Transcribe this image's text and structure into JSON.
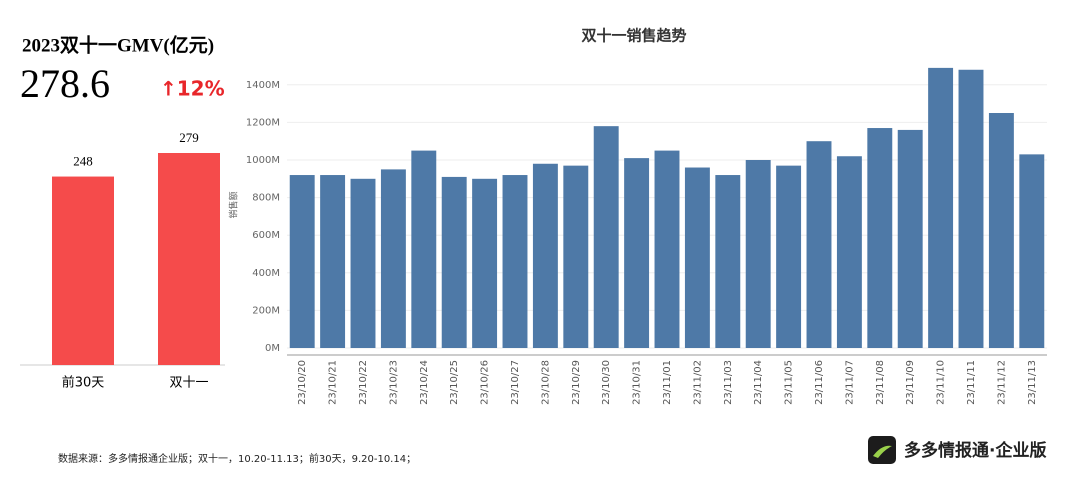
{
  "chart_data": [
    {
      "type": "bar",
      "title": "2023双十一GMV(亿元)",
      "headline": 278.6,
      "change": "↑12%",
      "categories": [
        "前30天",
        "双十一"
      ],
      "values": [
        248,
        279
      ],
      "color": "#f54b4b"
    },
    {
      "type": "bar",
      "title": "双十一销售趋势",
      "y_label": "销售额",
      "categories": [
        "23/10/20",
        "23/10/21",
        "23/10/22",
        "23/10/23",
        "23/10/24",
        "23/10/25",
        "23/10/26",
        "23/10/27",
        "23/10/28",
        "23/10/29",
        "23/10/30",
        "23/10/31",
        "23/11/01",
        "23/11/02",
        "23/11/03",
        "23/11/04",
        "23/11/05",
        "23/11/06",
        "23/11/07",
        "23/11/08",
        "23/11/09",
        "23/11/10",
        "23/11/11",
        "23/11/12",
        "23/11/13"
      ],
      "values": [
        920,
        920,
        900,
        950,
        1050,
        910,
        900,
        920,
        980,
        970,
        1180,
        1010,
        1050,
        960,
        920,
        1000,
        970,
        1100,
        1020,
        1170,
        1160,
        1490,
        1480,
        1250,
        1030
      ],
      "color": "#4e79a7",
      "ylim": [
        0,
        1500
      ],
      "yticks": [
        {
          "value": 0,
          "label": "0M"
        },
        {
          "value": 200,
          "label": "200M"
        },
        {
          "value": 400,
          "label": "400M"
        },
        {
          "value": 600,
          "label": "600M"
        },
        {
          "value": 800,
          "label": "800M"
        },
        {
          "value": 1000,
          "label": "1000M"
        },
        {
          "value": 1200,
          "label": "1200M"
        },
        {
          "value": 1400,
          "label": "1400M"
        }
      ],
      "grid": true
    }
  ],
  "source": "数据来源：多多情报通企业版；双十一，10.20-11.13；前30天，9.20-10.14；",
  "brand": "多多情报通·企业版"
}
